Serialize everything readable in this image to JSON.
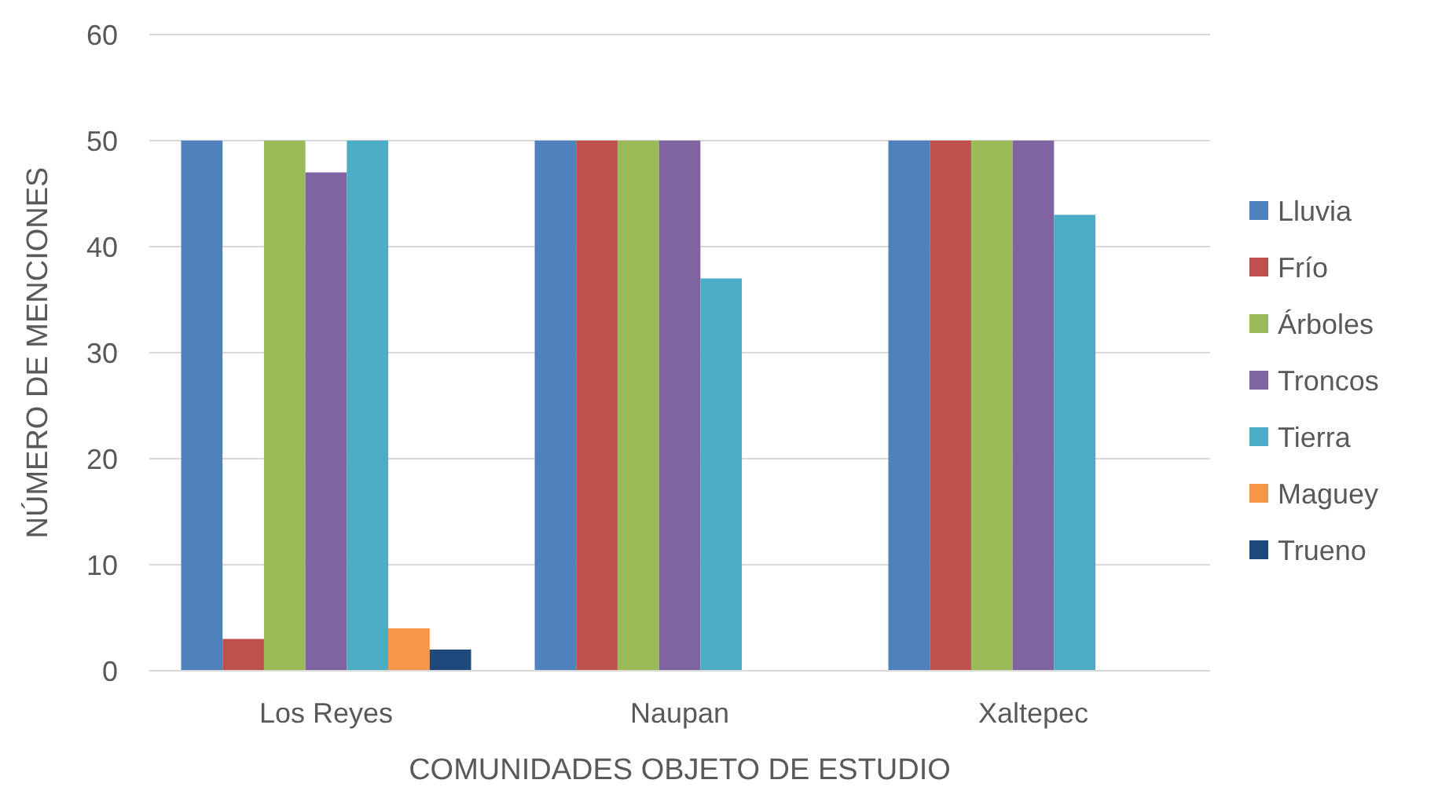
{
  "chart_data": {
    "type": "bar",
    "xlabel": "COMUNIDADES OBJETO DE ESTUDIO",
    "ylabel": "NÚMERO DE MENCIONES",
    "categories": [
      "Los Reyes",
      "Naupan",
      "Xaltepec"
    ],
    "series": [
      {
        "name": "Lluvia",
        "color": "#4f81bd",
        "values": [
          50,
          50,
          50
        ]
      },
      {
        "name": "Frío",
        "color": "#c0504d",
        "values": [
          3,
          50,
          50
        ]
      },
      {
        "name": "Árboles",
        "color": "#9bbb59",
        "values": [
          50,
          50,
          50
        ]
      },
      {
        "name": "Troncos",
        "color": "#8064a2",
        "values": [
          47,
          50,
          50
        ]
      },
      {
        "name": "Tierra",
        "color": "#4bacc6",
        "values": [
          50,
          37,
          43
        ]
      },
      {
        "name": "Maguey",
        "color": "#f79646",
        "values": [
          4,
          null,
          null
        ]
      },
      {
        "name": "Trueno",
        "color": "#1f497d",
        "values": [
          2,
          null,
          null
        ]
      }
    ],
    "ylim": [
      0,
      60
    ],
    "yticks": [
      0,
      10,
      20,
      30,
      40,
      50,
      60
    ],
    "grid": "y",
    "legend": "right"
  }
}
